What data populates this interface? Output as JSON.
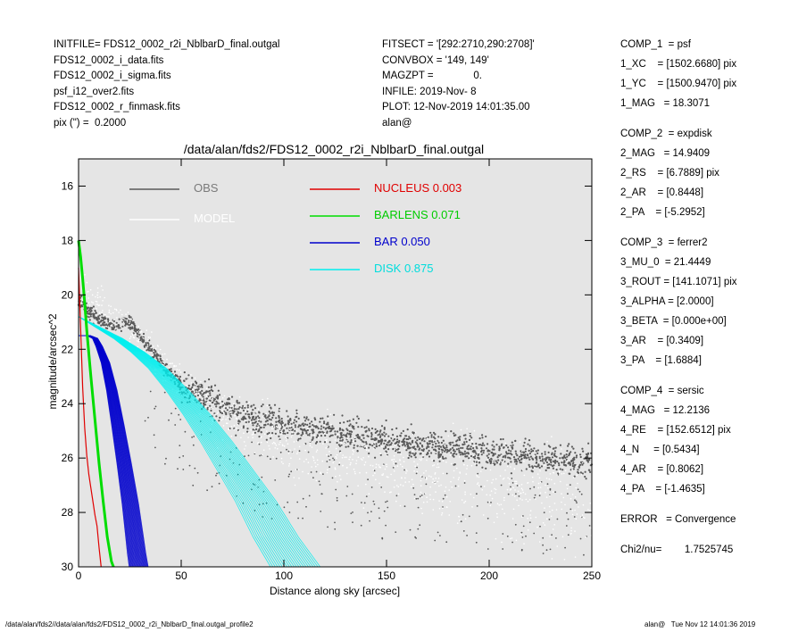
{
  "header_left": [
    "INITFILE= FDS12_0002_r2i_NblbarD_final.outgal",
    "FDS12_0002_i_data.fits",
    "FDS12_0002_i_sigma.fits",
    "psf_i12_over2.fits",
    "FDS12_0002_r_finmask.fits",
    "pix (\") =  0.2000"
  ],
  "header_mid": [
    "FITSECT = '[292:2710,290:2708]'",
    "CONVBOX = '149, 149'",
    "MAGZPT =              0.",
    "INFILE: 2019-Nov- 8",
    "PLOT: 12-Nov-2019 14:01:35.00",
    "alan@"
  ],
  "components": [
    {
      "rows": [
        "COMP_1  = psf",
        "1_XC    = [1502.6680] pix",
        "1_YC    = [1500.9470] pix",
        "1_MAG   = 18.3071"
      ]
    },
    {
      "rows": [
        "COMP_2  = expdisk",
        "2_MAG   = 14.9409",
        "2_RS    = [6.7889] pix",
        "2_AR    = [0.8448]",
        "2_PA    = [-5.2952]"
      ]
    },
    {
      "rows": [
        "COMP_3  = ferrer2",
        "3_MU_0  = 21.4449",
        "3_ROUT = [141.1071] pix",
        "3_ALPHA = [2.0000]",
        "3_BETA  = [0.000e+00]",
        "3_AR    = [0.3409]",
        "3_PA    = [1.6884]"
      ]
    },
    {
      "rows": [
        "COMP_4  = sersic",
        "4_MAG   = 12.2136",
        "4_RE    = [152.6512] pix",
        "4_N     = [0.5434]",
        "4_AR    = [0.8062]",
        "4_PA    = [-1.4635]"
      ]
    },
    {
      "rows": [
        "ERROR   = Convergence"
      ]
    },
    {
      "rows": [
        "Chi2/nu=        1.7525745"
      ]
    }
  ],
  "footer_left": "/data/alan/fds2//data/alan/fds2/FDS12_0002_r2i_NblbarD_final.outgal_profile2",
  "footer_right": "alan@   Tue Nov 12 14:01:36 2019",
  "chart_data": {
    "type": "scatter",
    "title": "/data/alan/fds2/FDS12_0002_r2i_NblbarD_final.outgal",
    "xlabel": "Distance along sky [arcsec]",
    "ylabel": "magnitude/arcsec^2",
    "xlim": [
      0,
      250
    ],
    "ylim": [
      30,
      15
    ],
    "y_inverted": true,
    "xticks": [
      0,
      50,
      100,
      150,
      200,
      250
    ],
    "yticks": [
      16,
      18,
      20,
      22,
      24,
      26,
      28,
      30
    ],
    "background_color": "#e5e5e5",
    "legend": [
      {
        "label": "OBS",
        "color": "#5a5a5a",
        "text_color": "#7a7a7a"
      },
      {
        "label": "MODEL",
        "color": "#ffffff",
        "text_color": "#ffffff"
      },
      {
        "label": "NUCLEUS  0.003",
        "color": "#e00000",
        "text_color": "#e00000"
      },
      {
        "label": "BARLENS  0.071",
        "color": "#00dd00",
        "text_color": "#00cc00"
      },
      {
        "label": "BAR  0.050",
        "color": "#0000cc",
        "text_color": "#0000cc"
      },
      {
        "label": "DISK  0.875",
        "color": "#00eeee",
        "text_color": "#00dddd"
      }
    ],
    "series": [
      {
        "name": "NUCLEUS 0.003",
        "color": "#e00000",
        "x": [
          0,
          1,
          2,
          3,
          4,
          5,
          6,
          7,
          8,
          9,
          10,
          11
        ],
        "y": [
          19.0,
          21.2,
          23.4,
          24.9,
          25.9,
          26.6,
          27.1,
          27.6,
          28.1,
          28.5,
          29.3,
          30.0
        ]
      },
      {
        "name": "BARLENS 0.071",
        "color": "#00dd00",
        "x": [
          0,
          1,
          2,
          3,
          4,
          6,
          8,
          10,
          12,
          14,
          16,
          17
        ],
        "y": [
          18.0,
          18.6,
          19.4,
          20.3,
          21.3,
          23.0,
          24.6,
          26.2,
          27.6,
          28.9,
          29.8,
          30.0
        ]
      },
      {
        "name": "BAR 0.050",
        "color": "#0000cc",
        "x": [
          0,
          5,
          8,
          10,
          13,
          16,
          19,
          22,
          25,
          27,
          28,
          29
        ],
        "y": [
          21.5,
          21.5,
          21.6,
          21.9,
          22.5,
          23.5,
          24.8,
          26.2,
          27.7,
          28.9,
          29.5,
          30.0
        ]
      },
      {
        "name": "DISK 0.875",
        "color": "#00eeee",
        "x": [
          0,
          10,
          20,
          30,
          40,
          50,
          60,
          70,
          80,
          90,
          100,
          110
        ],
        "y": [
          20.8,
          21.2,
          21.6,
          22.1,
          22.7,
          23.5,
          24.4,
          25.4,
          26.5,
          27.6,
          28.9,
          30.0
        ]
      },
      {
        "name": "OBS",
        "color": "#5a5a5a",
        "x": [
          0,
          5,
          10,
          15,
          20,
          25,
          30,
          40,
          50,
          75,
          100,
          150,
          200,
          250
        ],
        "y": [
          20.2,
          20.6,
          20.9,
          21.1,
          21.1,
          21.0,
          21.5,
          22.5,
          23.3,
          24.3,
          24.8,
          25.4,
          25.8,
          26.2
        ]
      },
      {
        "name": "MODEL",
        "color": "#ffffff",
        "x": [
          0,
          10,
          20,
          30,
          50,
          75,
          100,
          150,
          200,
          250
        ],
        "y": [
          19.6,
          20.4,
          21.0,
          21.6,
          23.3,
          24.6,
          25.4,
          26.3,
          27.0,
          27.6
        ]
      }
    ]
  }
}
